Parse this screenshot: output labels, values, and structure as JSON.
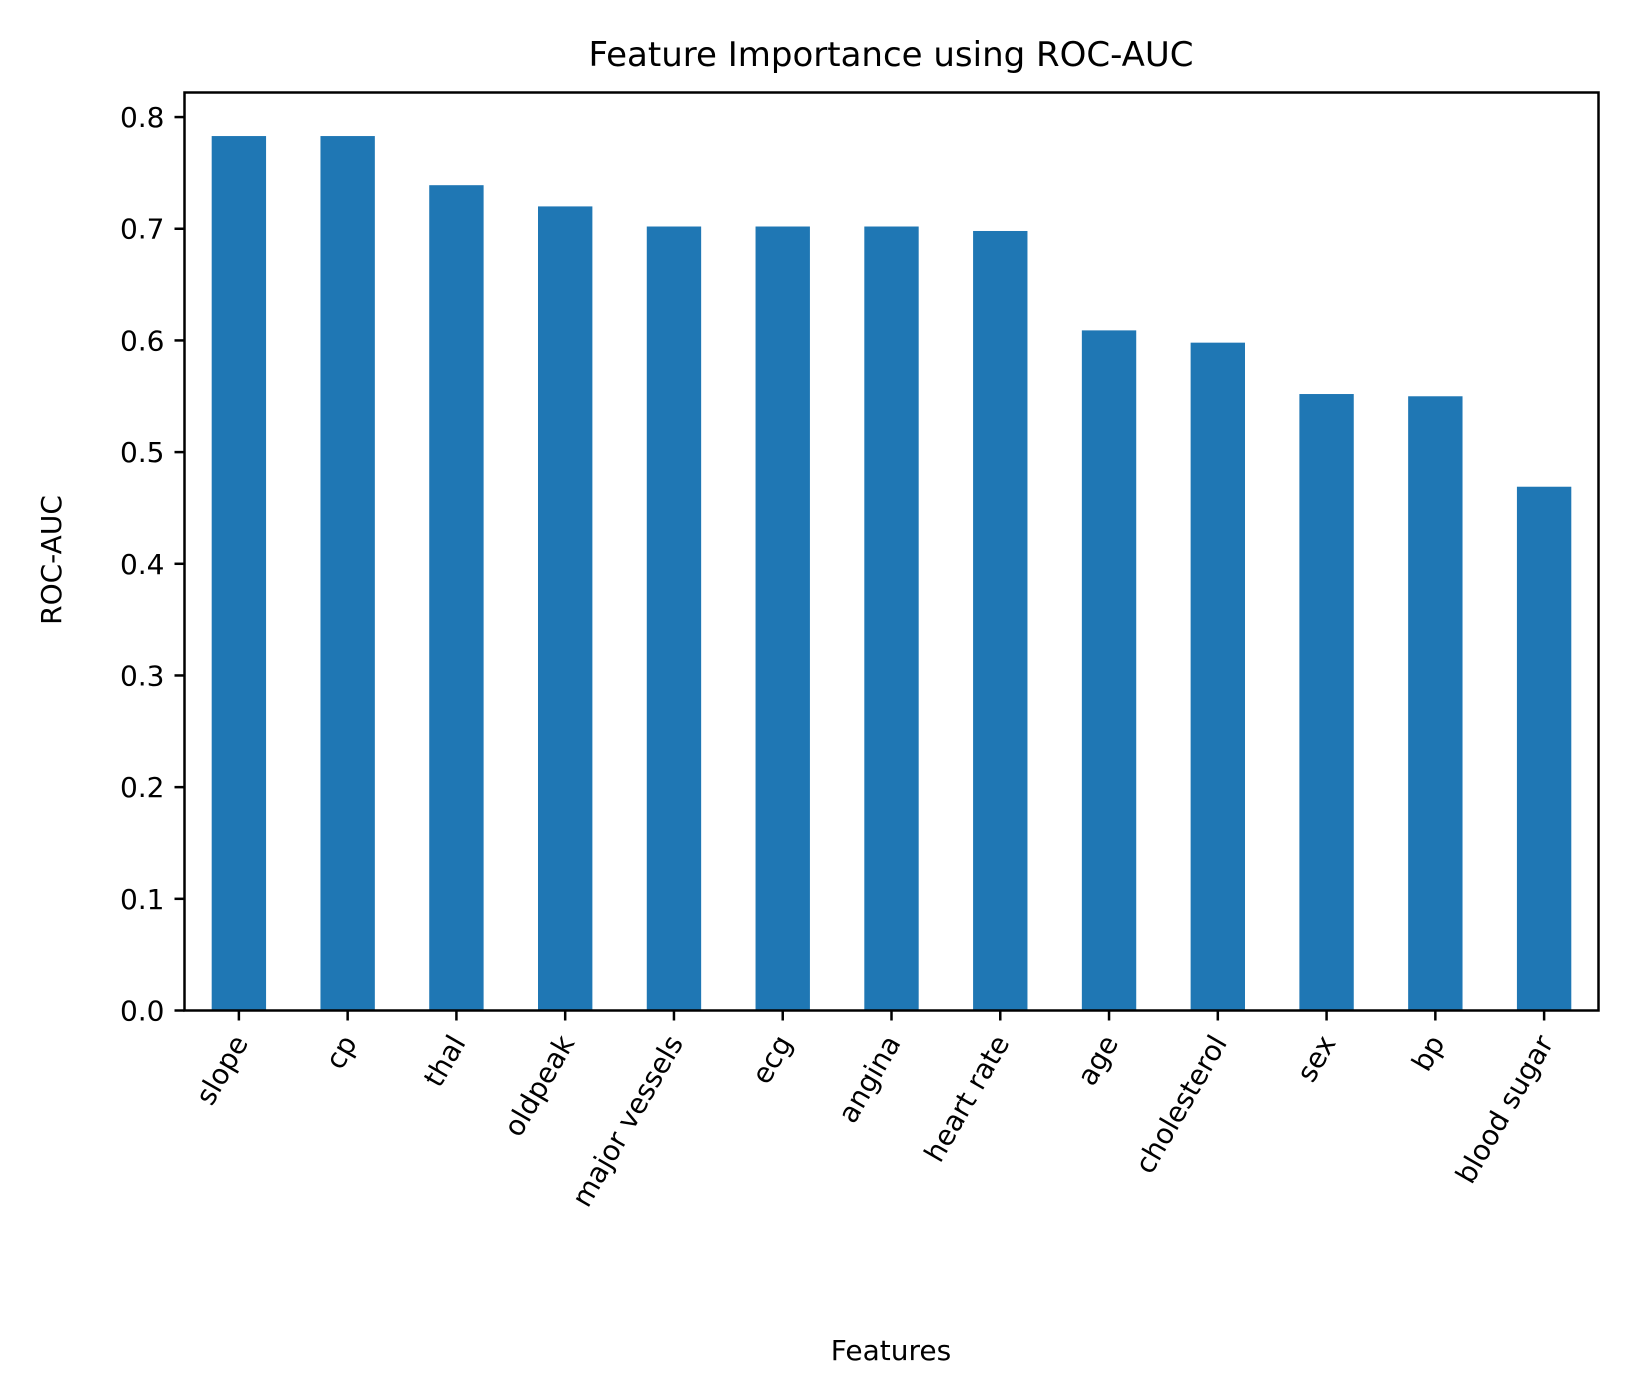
{
  "chart_data": {
    "type": "bar",
    "title": "Feature Importance using ROC-AUC",
    "xlabel": "Features",
    "ylabel": "ROC-AUC",
    "categories": [
      "slope",
      "cp",
      "thal",
      "oldpeak",
      "major vessels",
      "ecg",
      "angina",
      "heart rate",
      "age",
      "cholesterol",
      "sex",
      "bp",
      "blood sugar"
    ],
    "values": [
      0.783,
      0.783,
      0.739,
      0.72,
      0.702,
      0.702,
      0.702,
      0.698,
      0.609,
      0.598,
      0.552,
      0.55,
      0.469
    ],
    "ylim": [
      0,
      0.822
    ],
    "yticks": [
      "0.0",
      "0.1",
      "0.2",
      "0.3",
      "0.4",
      "0.5",
      "0.6",
      "0.7",
      "0.8"
    ],
    "grid": false,
    "legend": "none",
    "bar_color": "#1f77b4"
  }
}
